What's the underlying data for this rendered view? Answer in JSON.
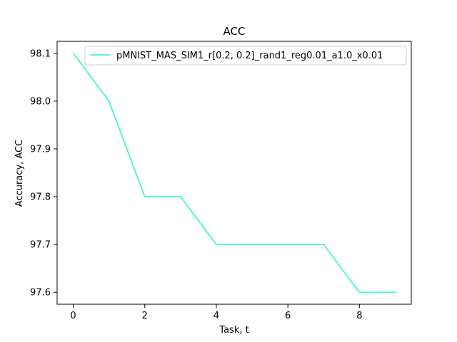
{
  "chart_data": {
    "type": "line",
    "title": "ACC",
    "xlabel": "Task, t",
    "ylabel": "Accuracy, ACC",
    "xlim": [
      -0.45,
      9.45
    ],
    "ylim": [
      97.575,
      98.125
    ],
    "xticks": [
      0,
      2,
      4,
      6,
      8
    ],
    "xtick_labels": [
      "0",
      "2",
      "4",
      "6",
      "8"
    ],
    "yticks": [
      97.6,
      97.7,
      97.8,
      97.9,
      98.0,
      98.1
    ],
    "ytick_labels": [
      "97.6",
      "97.7",
      "97.8",
      "97.9",
      "98.0",
      "98.1"
    ],
    "grid": false,
    "legend_position": "top-right",
    "series": [
      {
        "name": "pMNIST_MAS_SIM1_r[0.2, 0.2]_rand1_reg0.01_a1.0_x0.01",
        "color": "#53f5d7",
        "x": [
          0,
          1,
          2,
          3,
          4,
          5,
          6,
          7,
          8,
          9
        ],
        "y": [
          98.1,
          98.0,
          97.8,
          97.8,
          97.7,
          97.7,
          97.7,
          97.7,
          97.6,
          97.6
        ]
      }
    ]
  }
}
